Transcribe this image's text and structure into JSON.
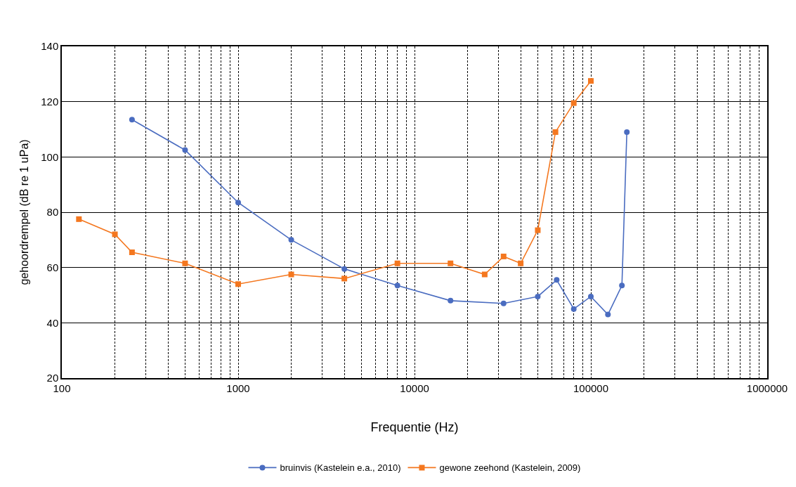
{
  "chart_data": {
    "type": "line",
    "xlabel": "Frequentie (Hz)",
    "ylabel": "gehoordrempel (dB re 1 uPa)",
    "log": "x",
    "xlim": [
      100,
      1000000
    ],
    "ylim": [
      20,
      140
    ],
    "xticks": [
      100,
      {
        "value": 200,
        "label": null
      },
      {
        "value": 300,
        "label": null
      },
      {
        "value": 400,
        "label": null
      },
      {
        "value": 500,
        "label": null
      },
      {
        "value": 600,
        "label": null
      },
      {
        "value": 700,
        "label": null
      },
      {
        "value": 800,
        "label": null
      },
      {
        "value": 900,
        "label": null
      },
      1000,
      {
        "value": 2000,
        "label": null
      },
      {
        "value": 3000,
        "label": null
      },
      {
        "value": 4000,
        "label": null
      },
      {
        "value": 5000,
        "label": null
      },
      {
        "value": 6000,
        "label": null
      },
      {
        "value": 7000,
        "label": null
      },
      {
        "value": 8000,
        "label": null
      },
      {
        "value": 9000,
        "label": null
      },
      10000,
      {
        "value": 20000,
        "label": null
      },
      {
        "value": 30000,
        "label": null
      },
      {
        "value": 40000,
        "label": null
      },
      {
        "value": 50000,
        "label": null
      },
      {
        "value": 60000,
        "label": null
      },
      {
        "value": 70000,
        "label": null
      },
      {
        "value": 80000,
        "label": null
      },
      {
        "value": 90000,
        "label": null
      },
      100000,
      {
        "value": 200000,
        "label": null
      },
      {
        "value": 300000,
        "label": null
      },
      {
        "value": 400000,
        "label": null
      },
      {
        "value": 500000,
        "label": null
      },
      {
        "value": 600000,
        "label": null
      },
      {
        "value": 700000,
        "label": null
      },
      {
        "value": 800000,
        "label": null
      },
      {
        "value": 900000,
        "label": null
      },
      1000000
    ],
    "yticks": [
      20,
      40,
      60,
      80,
      100,
      120,
      140
    ],
    "grid": true,
    "legend": "bottom",
    "line_style": "solid",
    "series": [
      {
        "name": "bruinvis (Kastelein e.a., 2010)",
        "color": "#4a6cc0",
        "marker": "circle",
        "x": [
          250,
          500,
          1000,
          2000,
          4000,
          8000,
          16000,
          32000,
          50000,
          64000,
          80000,
          100000,
          125000,
          150000,
          160000
        ],
        "values": [
          113.5,
          102.5,
          83.5,
          70,
          59.5,
          53.5,
          48,
          47,
          49.5,
          55.5,
          45,
          49.5,
          43,
          53.5,
          109
        ]
      },
      {
        "name": "gewone zeehond (Kastelein, 2009)",
        "color": "#f4771f",
        "marker": "square",
        "x": [
          125,
          200,
          250,
          500,
          1000,
          2000,
          4000,
          8000,
          16000,
          25000,
          32000,
          40000,
          50000,
          63000,
          80000,
          100000
        ],
        "values": [
          77.5,
          72,
          65.5,
          61.5,
          54,
          57.5,
          56,
          61.5,
          61.5,
          57.5,
          64,
          61.5,
          73.5,
          109,
          119.5,
          127.5
        ]
      }
    ]
  }
}
